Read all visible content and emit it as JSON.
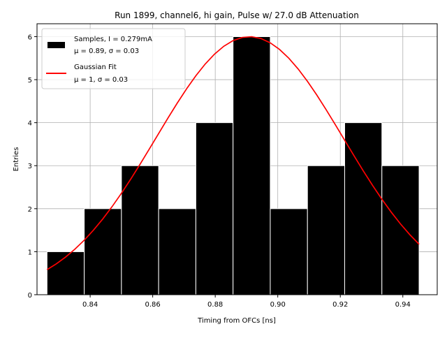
{
  "chart_data": {
    "type": "bar",
    "title": "Run 1899, channel6, hi gain, Pulse w/ 27.0 dB Attenuation",
    "xlabel": "Timing from OFCs [ns]",
    "ylabel": "Entries",
    "xlim": [
      0.823,
      0.951
    ],
    "ylim": [
      0,
      6.3
    ],
    "grid": true,
    "legend_position": "top-left",
    "x_ticks": [
      0.84,
      0.86,
      0.88,
      0.9,
      0.92,
      0.94
    ],
    "x_tick_labels": [
      "0.84",
      "0.86",
      "0.88",
      "0.90",
      "0.92",
      "0.94"
    ],
    "y_ticks": [
      0,
      1,
      2,
      3,
      4,
      5,
      6
    ],
    "y_tick_labels": [
      "0",
      "1",
      "2",
      "3",
      "4",
      "5",
      "6"
    ],
    "histogram": {
      "name": "Samples",
      "bin_edges": [
        0.8262,
        0.8381,
        0.85,
        0.8619,
        0.8738,
        0.8857,
        0.8976,
        0.9095,
        0.9214,
        0.9333,
        0.9452
      ],
      "counts": [
        1,
        2,
        3,
        2,
        4,
        6,
        2,
        3,
        4,
        3
      ],
      "color": "#000000"
    },
    "fit": {
      "name": "Gaussian Fit",
      "mu": 0.891,
      "sigma": 0.03,
      "amplitude": 6.0,
      "x_range": [
        0.8262,
        0.9452
      ],
      "color": "#ff0000"
    },
    "legend": [
      {
        "lines": [
          "Samples, I = 0.279mA",
          "μ = 0.89, σ = 0.03"
        ],
        "symbol": "box",
        "color": "#000000"
      },
      {
        "lines": [
          "Gaussian Fit",
          "μ = 1, σ = 0.03"
        ],
        "symbol": "line",
        "color": "#ff0000"
      }
    ]
  }
}
